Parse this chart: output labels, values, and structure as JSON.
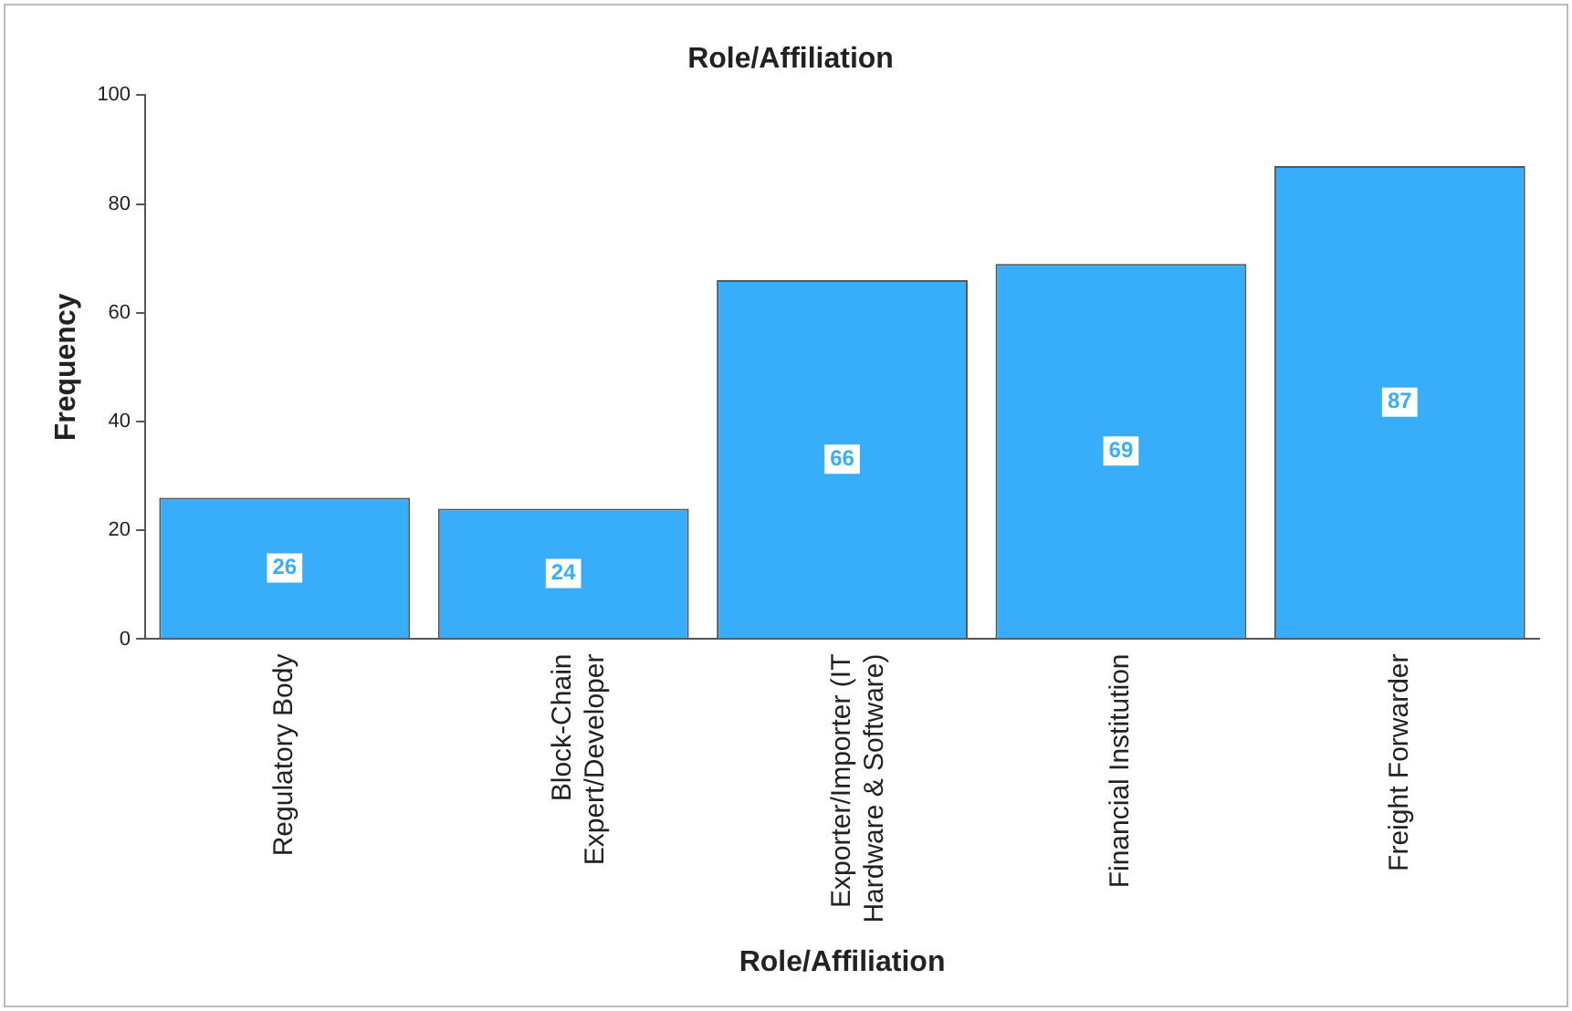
{
  "chart_data": {
    "type": "bar",
    "title": "Role/Affiliation",
    "xlabel": "Role/Affiliation",
    "ylabel": "Frequency",
    "categories": [
      "Regulatory Body",
      "Block-Chain Expert/Developer",
      "Exporter/Importer (IT Hardware & Software)",
      "Financial Institution",
      "Freight Forwarder"
    ],
    "values": [
      26,
      24,
      66,
      69,
      87
    ],
    "color": "#38aefb",
    "ylim": [
      0,
      100
    ],
    "yticks": [
      0,
      20,
      40,
      60,
      80,
      100
    ],
    "grid": false,
    "legend": false,
    "data_labels": true
  }
}
